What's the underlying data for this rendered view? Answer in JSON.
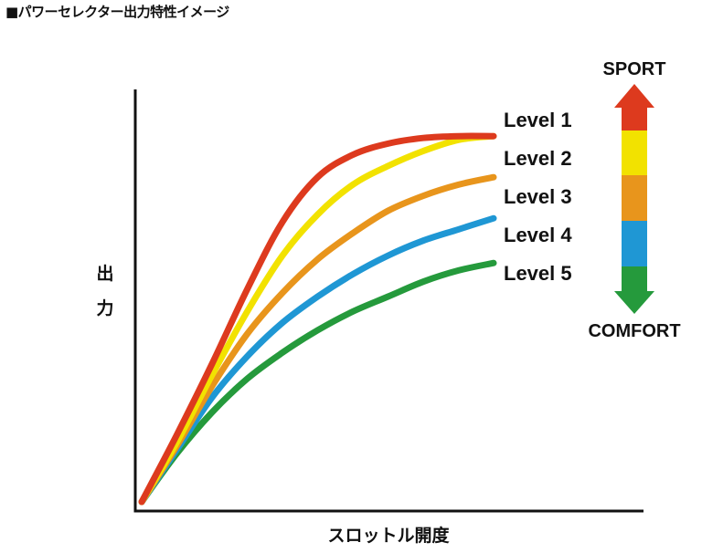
{
  "title": "■パワーセレクター出力特性イメージ",
  "chart_data": {
    "type": "line",
    "title": "■パワーセレクター出力特性イメージ",
    "xlabel": "スロットル開度",
    "ylabel": "出力",
    "xlim": [
      0,
      100
    ],
    "ylim": [
      0,
      100
    ],
    "grid": false,
    "x_ticks": false,
    "y_ticks": false,
    "legend": "right",
    "series": [
      {
        "name": "Level 1",
        "color": "#dd3a1e",
        "x": [
          0,
          10,
          20,
          30,
          40,
          50,
          60,
          70,
          80,
          90,
          100
        ],
        "y": [
          0,
          18,
          37,
          57,
          75,
          87,
          93,
          96,
          97.5,
          98,
          98
        ]
      },
      {
        "name": "Level 2",
        "color": "#f2e200",
        "x": [
          0,
          10,
          20,
          30,
          40,
          50,
          60,
          70,
          80,
          90,
          100
        ],
        "y": [
          0,
          16,
          34,
          51,
          66,
          77,
          85,
          90,
          94,
          97,
          98
        ]
      },
      {
        "name": "Level 3",
        "color": "#e8951c",
        "x": [
          0,
          10,
          20,
          30,
          40,
          50,
          60,
          70,
          80,
          90,
          100
        ],
        "y": [
          0,
          15,
          31,
          45,
          56,
          65,
          72,
          78,
          82,
          85,
          87
        ]
      },
      {
        "name": "Level 4",
        "color": "#1f97d4",
        "x": [
          0,
          10,
          20,
          30,
          40,
          50,
          60,
          70,
          80,
          90,
          100
        ],
        "y": [
          0,
          14,
          28,
          39,
          48,
          55,
          61,
          66,
          70,
          73,
          76
        ]
      },
      {
        "name": "Level 5",
        "color": "#259a3c",
        "x": [
          0,
          10,
          20,
          30,
          40,
          50,
          60,
          70,
          80,
          90,
          100
        ],
        "y": [
          0,
          13,
          24,
          33,
          40,
          46,
          51,
          55,
          59,
          62,
          64
        ]
      }
    ],
    "scale": {
      "top_label": "SPORT",
      "bottom_label": "COMFORT",
      "colors": [
        "#dd3a1e",
        "#f2e200",
        "#e8951c",
        "#1f97d4",
        "#259a3c"
      ]
    }
  }
}
